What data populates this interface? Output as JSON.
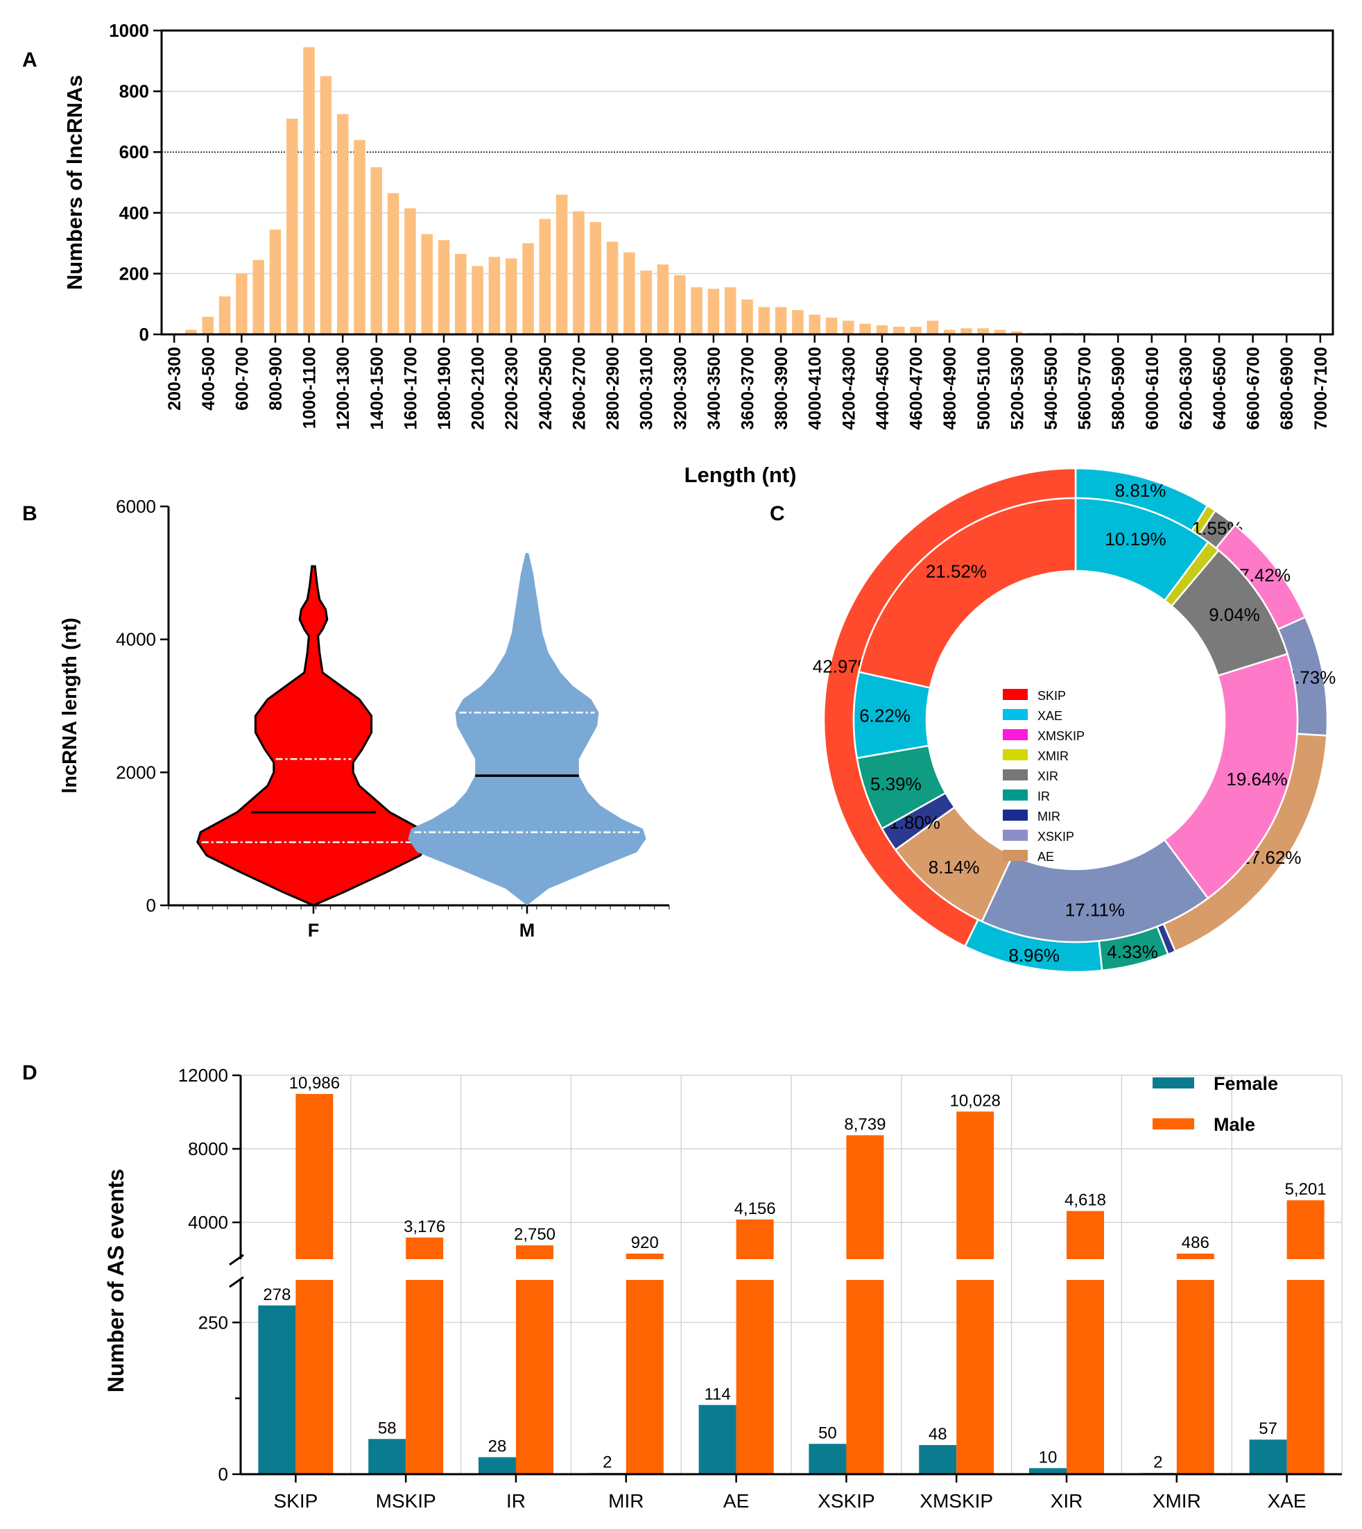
{
  "colors": {
    "barA": "#FDBF7F",
    "female": "#0B7C90",
    "male": "#FF6403",
    "violinF": "#FF0000",
    "violinM": "#7BA9D6"
  },
  "chart_data": [
    {
      "panel": "A",
      "type": "bar",
      "xlabel": "Length (nt)",
      "ylabel": "Numbers of lncRNAs",
      "ylim": [
        0,
        1000
      ],
      "yticks": [
        "0",
        "200",
        "400",
        "600",
        "800",
        "1000"
      ],
      "reference_line": 600,
      "categories": [
        "200-300",
        "300-400",
        "400-500",
        "500-600",
        "600-700",
        "700-800",
        "800-900",
        "900-1000",
        "1000-1100",
        "1100-1200",
        "1200-1300",
        "1300-1400",
        "1400-1500",
        "1500-1600",
        "1600-1700",
        "1700-1800",
        "1800-1900",
        "1900-2000",
        "2000-2100",
        "2100-2200",
        "2200-2300",
        "2300-2400",
        "2400-2500",
        "2500-2600",
        "2600-2700",
        "2700-2800",
        "2800-2900",
        "2900-3000",
        "3000-3100",
        "3100-3200",
        "3200-3300",
        "3300-3400",
        "3400-3500",
        "3500-3600",
        "3600-3700",
        "3700-3800",
        "3800-3900",
        "3900-4000",
        "4000-4100",
        "4100-4200",
        "4200-4300",
        "4300-4400",
        "4400-4500",
        "4500-4600",
        "4600-4700",
        "4700-4800",
        "4800-4900",
        "4900-5000",
        "5000-5100",
        "5100-5200",
        "5200-5300",
        "5300-5400",
        "5400-5500",
        "5500-5600",
        "5600-5700",
        "5700-5800",
        "5800-5900",
        "5900-6000",
        "6000-6100",
        "6100-6200",
        "6200-6300",
        "6300-6400",
        "6400-6500",
        "6500-6600",
        "6600-6700",
        "6700-6800",
        "6800-6900",
        "6900-7000",
        "7000-7100"
      ],
      "tick_labels": [
        "200-300",
        "400-500",
        "600-700",
        "800-900",
        "1000-1100",
        "1200-1300",
        "1400-1500",
        "1600-1700",
        "1800-1900",
        "2000-2100",
        "2200-2300",
        "2400-2500",
        "2600-2700",
        "2800-2900",
        "3000-3100",
        "3200-3300",
        "3400-3500",
        "3600-3700",
        "3800-3900",
        "4000-4100",
        "4200-4300",
        "4400-4500",
        "4600-4700",
        "4800-4900",
        "5000-5100",
        "5200-5300",
        "5400-5500",
        "5600-5700",
        "5800-5900",
        "6000-6100",
        "6200-6300",
        "6400-6500",
        "6600-6700",
        "6800-6900",
        "7000-7100"
      ],
      "values": [
        1,
        15,
        58,
        125,
        200,
        245,
        345,
        710,
        945,
        850,
        725,
        640,
        550,
        465,
        415,
        330,
        310,
        265,
        225,
        255,
        250,
        300,
        380,
        460,
        405,
        370,
        305,
        270,
        210,
        230,
        195,
        155,
        150,
        155,
        115,
        90,
        90,
        80,
        65,
        55,
        45,
        35,
        30,
        25,
        25,
        45,
        15,
        20,
        20,
        15,
        10,
        5,
        5,
        5,
        5,
        2,
        2,
        2,
        1,
        1,
        1,
        1,
        1,
        1,
        1,
        1,
        1,
        1,
        1
      ]
    },
    {
      "panel": "B",
      "type": "violin",
      "ylabel": "lncRNA length (nt)",
      "ylim": [
        0,
        6000
      ],
      "yticks": [
        "0",
        "2000",
        "4000",
        "6000"
      ],
      "categories": [
        "F",
        "M"
      ],
      "F": {
        "min": 0,
        "max": 5100,
        "q1": 950,
        "median": 1400,
        "q3": 2200,
        "density": [
          [
            0,
            0
          ],
          [
            200,
            0.2
          ],
          [
            500,
            0.48
          ],
          [
            750,
            0.7
          ],
          [
            950,
            0.76
          ],
          [
            1100,
            0.74
          ],
          [
            1250,
            0.62
          ],
          [
            1400,
            0.5
          ],
          [
            1600,
            0.4
          ],
          [
            1800,
            0.3
          ],
          [
            2000,
            0.26
          ],
          [
            2150,
            0.26
          ],
          [
            2350,
            0.32
          ],
          [
            2600,
            0.38
          ],
          [
            2850,
            0.38
          ],
          [
            3100,
            0.3
          ],
          [
            3300,
            0.18
          ],
          [
            3500,
            0.06
          ],
          [
            3800,
            0.04
          ],
          [
            4050,
            0.03
          ],
          [
            4150,
            0.06
          ],
          [
            4300,
            0.09
          ],
          [
            4450,
            0.08
          ],
          [
            4600,
            0.04
          ],
          [
            4800,
            0.025
          ],
          [
            5100,
            0.01
          ]
        ]
      },
      "M": {
        "min": 0,
        "max": 5300,
        "q1": 1100,
        "median": 1950,
        "q3": 2900,
        "density": [
          [
            0,
            0
          ],
          [
            250,
            0.14
          ],
          [
            550,
            0.45
          ],
          [
            800,
            0.72
          ],
          [
            1000,
            0.78
          ],
          [
            1150,
            0.76
          ],
          [
            1300,
            0.62
          ],
          [
            1500,
            0.48
          ],
          [
            1700,
            0.4
          ],
          [
            1950,
            0.34
          ],
          [
            2200,
            0.34
          ],
          [
            2450,
            0.4
          ],
          [
            2700,
            0.46
          ],
          [
            2900,
            0.47
          ],
          [
            3100,
            0.42
          ],
          [
            3300,
            0.3
          ],
          [
            3500,
            0.22
          ],
          [
            3800,
            0.14
          ],
          [
            4100,
            0.1
          ],
          [
            4400,
            0.08
          ],
          [
            4700,
            0.06
          ],
          [
            5000,
            0.04
          ],
          [
            5300,
            0.01
          ]
        ]
      }
    },
    {
      "panel": "C",
      "type": "pie",
      "legend": [
        "SKIP",
        "XAE",
        "XMSKIP",
        "XMIR",
        "XIR",
        "IR",
        "MIR",
        "XSKIP",
        "AE"
      ],
      "legend_colors": [
        "#FF0000",
        "#00BFE8",
        "#FF1AD9",
        "#D4D700",
        "#777777",
        "#009A8C",
        "#1A2C8F",
        "#8C8EC9",
        "#D2955F"
      ],
      "outer": [
        {
          "name": "XAE",
          "value": 8.81,
          "label": "8.81%",
          "color": "#00BCD9"
        },
        {
          "name": "XMIR",
          "value": 0.6,
          "label": "",
          "color": "#C8CA1A"
        },
        {
          "name": "XIR",
          "value": 1.55,
          "label": "1.55%",
          "color": "#7A7A7A"
        },
        {
          "name": "XMSKIP",
          "value": 7.42,
          "label": "7.42%",
          "color": "#FF79C9"
        },
        {
          "name": "XSKIP",
          "value": 7.73,
          "label": "7.73%",
          "color": "#7F8FBC"
        },
        {
          "name": "AE",
          "value": 17.62,
          "label": "17.62%",
          "color": "#D89C6B"
        },
        {
          "name": "MIR",
          "value": 0.5,
          "label": "",
          "color": "#2A3A90"
        },
        {
          "name": "IR",
          "value": 4.33,
          "label": "4.33%",
          "color": "#0F9C82"
        },
        {
          "name": "XAE2",
          "value": 8.96,
          "label": "8.96%",
          "color": "#00BCD9"
        },
        {
          "name": "SKIP",
          "value": 42.97,
          "label": "42.97%",
          "color": "#FF4A2E"
        }
      ],
      "inner": [
        {
          "name": "XAE",
          "value": 10.19,
          "label": "10.19%",
          "color": "#00BCD9"
        },
        {
          "name": "XMIR",
          "value": 0.96,
          "label": "",
          "color": "#C8CA1A"
        },
        {
          "name": "XIR",
          "value": 9.04,
          "label": "9.04%",
          "color": "#7A7A7A"
        },
        {
          "name": "XMSKIP",
          "value": 19.64,
          "label": "19.64%",
          "color": "#FF79C9"
        },
        {
          "name": "XSKIP",
          "value": 17.11,
          "label": "17.11%",
          "color": "#7F8FBC"
        },
        {
          "name": "AE",
          "value": 8.14,
          "label": "8.14%",
          "color": "#D89C6B"
        },
        {
          "name": "MIR",
          "value": 1.8,
          "label": "1.80%",
          "color": "#2A3A90"
        },
        {
          "name": "IR",
          "value": 5.39,
          "label": "5.39%",
          "color": "#0F9C82"
        },
        {
          "name": "XAE2",
          "value": 6.22,
          "label": "6.22%",
          "color": "#00BCD9"
        },
        {
          "name": "SKIP",
          "value": 21.52,
          "label": "21.52%",
          "color": "#FF4A2E"
        }
      ]
    },
    {
      "panel": "D",
      "type": "bar",
      "ylabel": "Number of AS events",
      "axis_break": true,
      "lower_range": [
        0,
        320
      ],
      "upper_range": [
        2000,
        12000
      ],
      "yticks_lower": [
        "0",
        "250"
      ],
      "yticks_upper": [
        "4000",
        "8000",
        "12000"
      ],
      "categories": [
        "SKIP",
        "MSKIP",
        "IR",
        "MIR",
        "AE",
        "XSKIP",
        "XMSKIP",
        "XIR",
        "XMIR",
        "XAE"
      ],
      "series": [
        {
          "name": "Female",
          "values": [
            278,
            58,
            28,
            2,
            114,
            50,
            48,
            10,
            2,
            57
          ],
          "labels": [
            "278",
            "58",
            "28",
            "2",
            "114",
            "50",
            "48",
            "10",
            "2",
            "57"
          ]
        },
        {
          "name": "Male",
          "values": [
            10986,
            3176,
            2750,
            920,
            4156,
            8739,
            10028,
            4618,
            486,
            5201
          ],
          "labels": [
            "10,986",
            "3,176",
            "2,750",
            "920",
            "4,156",
            "8,739",
            "10,028",
            "4,618",
            "486",
            "5,201"
          ]
        }
      ]
    }
  ],
  "panels": {
    "A": "A",
    "B": "B",
    "C": "C",
    "D": "D"
  }
}
